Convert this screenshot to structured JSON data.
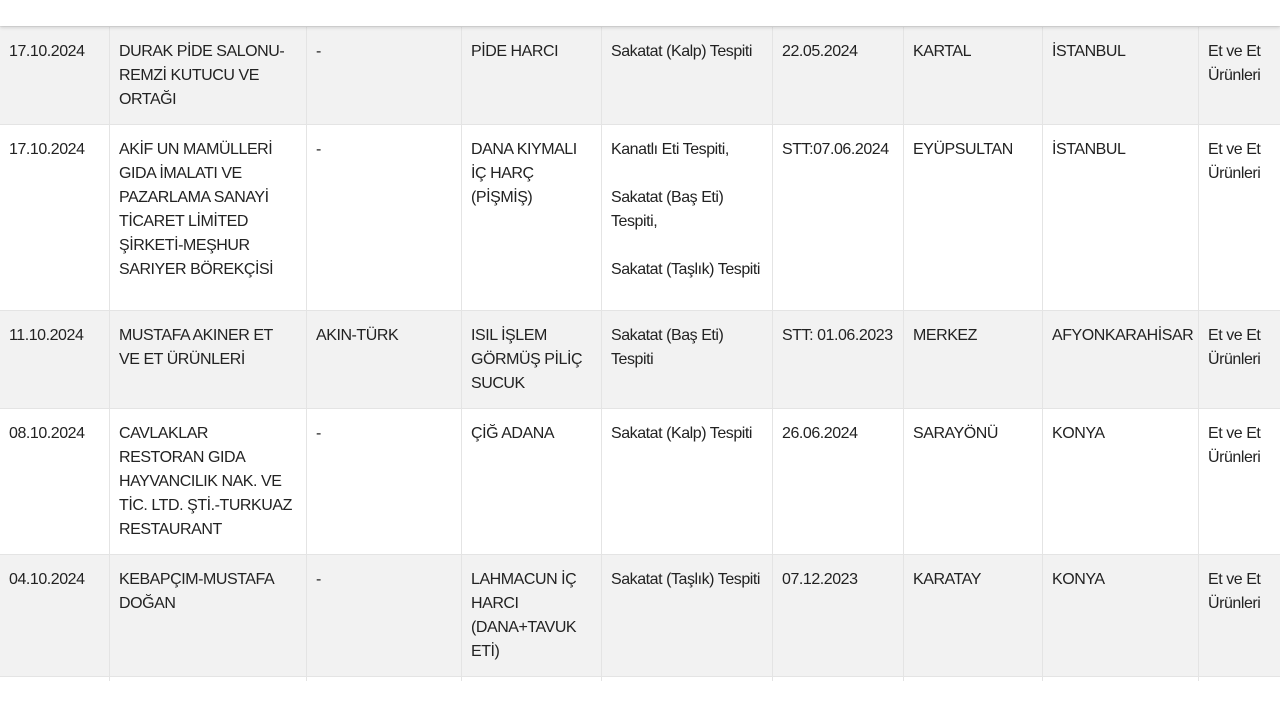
{
  "table": {
    "rows": [
      [
        "17.10.2024",
        "DURAK PİDE SALONU-REMZİ KUTUCU VE ORTAĞI",
        "-",
        "PİDE HARCI",
        "Sakatat (Kalp) Tespiti",
        "22.05.2024",
        "KARTAL",
        "İSTANBUL",
        "Et ve Et Ürünleri"
      ],
      [
        "17.10.2024",
        "AKİF UN MAMÜLLERİ GIDA İMALATI VE PAZARLAMA SANAYİ TİCARET LİMİTED ŞİRKETİ-MEŞHUR SARIYER BÖREKÇİSİ",
        "-",
        "DANA KIYMALI İÇ HARÇ (PİŞMİŞ)",
        "Kanatlı Eti Tespiti,\n\nSakatat (Baş Eti) Tespiti,\n\nSakatat (Taşlık) Tespiti",
        "STT:07.06.2024",
        "EYÜPSULTAN",
        "İSTANBUL",
        "Et ve Et Ürünleri"
      ],
      [
        "11.10.2024",
        "MUSTAFA AKINER ET VE ET ÜRÜNLERİ",
        "AKIN-TÜRK",
        "ISIL İŞLEM GÖRMÜŞ PİLİÇ SUCUK",
        "Sakatat (Baş Eti) Tespiti",
        "STT: 01.06.2023",
        "MERKEZ",
        "AFYONKARAHİSAR",
        "Et ve Et Ürünleri"
      ],
      [
        "08.10.2024",
        "CAVLAKLAR RESTORAN GIDA HAYVANCILIK NAK. VE TİC. LTD. ŞTİ.-TURKUAZ RESTAURANT",
        "-",
        "ÇİĞ ADANA",
        "Sakatat (Kalp) Tespiti",
        "26.06.2024",
        "SARAYÖNÜ",
        "KONYA",
        "Et ve Et Ürünleri"
      ],
      [
        "04.10.2024",
        "KEBAPÇIM-MUSTAFA DOĞAN",
        "-",
        "LAHMACUN İÇ HARCI (DANA+TAVUK ETİ)",
        "Sakatat (Taşlık) Tespiti",
        "07.12.2023",
        "KARATAY",
        "KONYA",
        "Et ve Et Ürünleri"
      ]
    ]
  }
}
